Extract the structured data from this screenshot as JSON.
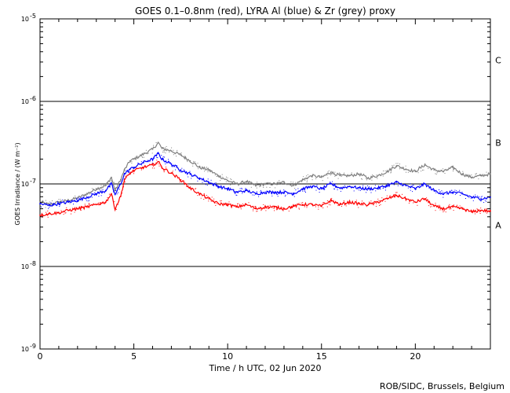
{
  "chart_data": {
    "type": "line",
    "title": "GOES 0.1–0.8nm (red), LYRA Al (blue) & Zr (grey) proxy",
    "xlabel": "Time / h UTC, 02 Jun 2020",
    "ylabel": "GOES Irradiance / (W m⁻²)",
    "xlim": [
      0,
      24
    ],
    "ylim_log10": [
      -9,
      -5
    ],
    "x_ticks": [
      0,
      5,
      10,
      15,
      20
    ],
    "y_ticks": [
      {
        "base": "10",
        "exp": "-9"
      },
      {
        "base": "10",
        "exp": "-8"
      },
      {
        "base": "10",
        "exp": "-7"
      },
      {
        "base": "10",
        "exp": "-6"
      },
      {
        "base": "10",
        "exp": "-5"
      }
    ],
    "flare_levels": [
      {
        "label": "A",
        "log10": -7.5
      },
      {
        "label": "B",
        "log10": -6.5
      },
      {
        "label": "C",
        "log10": -5.5
      }
    ],
    "reference_lines_log10": [
      -6,
      -7,
      -8
    ],
    "credit": "ROB/SIDC, Brussels, Belgium",
    "series": [
      {
        "name": "LYRA Zr proxy",
        "color": "#808080",
        "x": [
          0,
          0.5,
          1,
          1.5,
          2,
          2.5,
          3,
          3.5,
          3.8,
          4,
          4.3,
          4.5,
          4.8,
          5,
          5.5,
          6,
          6.3,
          6.5,
          7,
          7.5,
          8,
          8.5,
          9,
          9.5,
          10,
          10.5,
          11,
          11.5,
          12,
          12.5,
          13,
          13.5,
          14,
          14.5,
          15,
          15.5,
          16,
          16.5,
          17,
          17.5,
          18,
          18.5,
          19,
          19.5,
          20,
          20.5,
          21,
          21.5,
          22,
          22.5,
          23,
          23.5,
          24
        ],
        "y": [
          -7.22,
          -7.25,
          -7.22,
          -7.2,
          -7.17,
          -7.12,
          -7.06,
          -7.02,
          -6.92,
          -7.08,
          -6.95,
          -6.83,
          -6.72,
          -6.7,
          -6.64,
          -6.58,
          -6.5,
          -6.57,
          -6.6,
          -6.65,
          -6.72,
          -6.8,
          -6.83,
          -6.9,
          -6.96,
          -7.0,
          -6.97,
          -7.02,
          -7.0,
          -7.0,
          -6.98,
          -7.02,
          -6.95,
          -6.9,
          -6.92,
          -6.86,
          -6.9,
          -6.9,
          -6.88,
          -6.93,
          -6.9,
          -6.85,
          -6.78,
          -6.82,
          -6.85,
          -6.77,
          -6.83,
          -6.85,
          -6.8,
          -6.88,
          -6.92,
          -6.9,
          -6.88
        ]
      },
      {
        "name": "LYRA Al proxy",
        "color": "#0000ff",
        "x": [
          0,
          0.5,
          1,
          1.5,
          2,
          2.5,
          3,
          3.5,
          3.8,
          4,
          4.3,
          4.5,
          4.8,
          5,
          5.5,
          6,
          6.3,
          6.5,
          7,
          7.5,
          8,
          8.5,
          9,
          9.5,
          10,
          10.5,
          11,
          11.5,
          12,
          12.5,
          13,
          13.5,
          14,
          14.5,
          15,
          15.5,
          16,
          16.5,
          17,
          17.5,
          18,
          18.5,
          19,
          19.5,
          20,
          20.5,
          21,
          21.5,
          22,
          22.5,
          23,
          23.5,
          24
        ],
        "y": [
          -7.24,
          -7.26,
          -7.24,
          -7.22,
          -7.2,
          -7.16,
          -7.12,
          -7.08,
          -7.0,
          -7.13,
          -7.0,
          -6.88,
          -6.82,
          -6.8,
          -6.74,
          -6.7,
          -6.63,
          -6.7,
          -6.76,
          -6.83,
          -6.88,
          -6.93,
          -6.98,
          -7.03,
          -7.06,
          -7.1,
          -7.08,
          -7.12,
          -7.1,
          -7.1,
          -7.1,
          -7.12,
          -7.06,
          -7.03,
          -7.06,
          -7.0,
          -7.05,
          -7.03,
          -7.05,
          -7.06,
          -7.05,
          -7.02,
          -6.98,
          -7.02,
          -7.06,
          -7.0,
          -7.08,
          -7.12,
          -7.1,
          -7.12,
          -7.16,
          -7.18,
          -7.16
        ]
      },
      {
        "name": "GOES 0.1–0.8nm",
        "color": "#ff0000",
        "x": [
          0,
          0.5,
          1,
          1.5,
          2,
          2.5,
          3,
          3.5,
          3.8,
          4,
          4.3,
          4.5,
          4.8,
          5,
          5.5,
          6,
          6.3,
          6.5,
          7,
          7.5,
          8,
          8.5,
          9,
          9.5,
          10,
          10.5,
          11,
          11.5,
          12,
          12.5,
          13,
          13.5,
          14,
          14.5,
          15,
          15.5,
          16,
          16.5,
          17,
          17.5,
          18,
          18.5,
          19,
          19.5,
          20,
          20.5,
          21,
          21.5,
          22,
          22.5,
          23,
          23.5,
          24
        ],
        "y": [
          -7.38,
          -7.36,
          -7.35,
          -7.32,
          -7.3,
          -7.28,
          -7.25,
          -7.22,
          -7.12,
          -7.3,
          -7.15,
          -6.95,
          -6.87,
          -6.84,
          -6.8,
          -6.77,
          -6.73,
          -6.8,
          -6.87,
          -6.95,
          -7.05,
          -7.12,
          -7.18,
          -7.24,
          -7.25,
          -7.28,
          -7.25,
          -7.3,
          -7.28,
          -7.28,
          -7.3,
          -7.27,
          -7.25,
          -7.25,
          -7.27,
          -7.2,
          -7.25,
          -7.22,
          -7.24,
          -7.25,
          -7.22,
          -7.18,
          -7.14,
          -7.18,
          -7.22,
          -7.18,
          -7.27,
          -7.3,
          -7.28,
          -7.3,
          -7.34,
          -7.32,
          -7.33
        ]
      }
    ]
  }
}
